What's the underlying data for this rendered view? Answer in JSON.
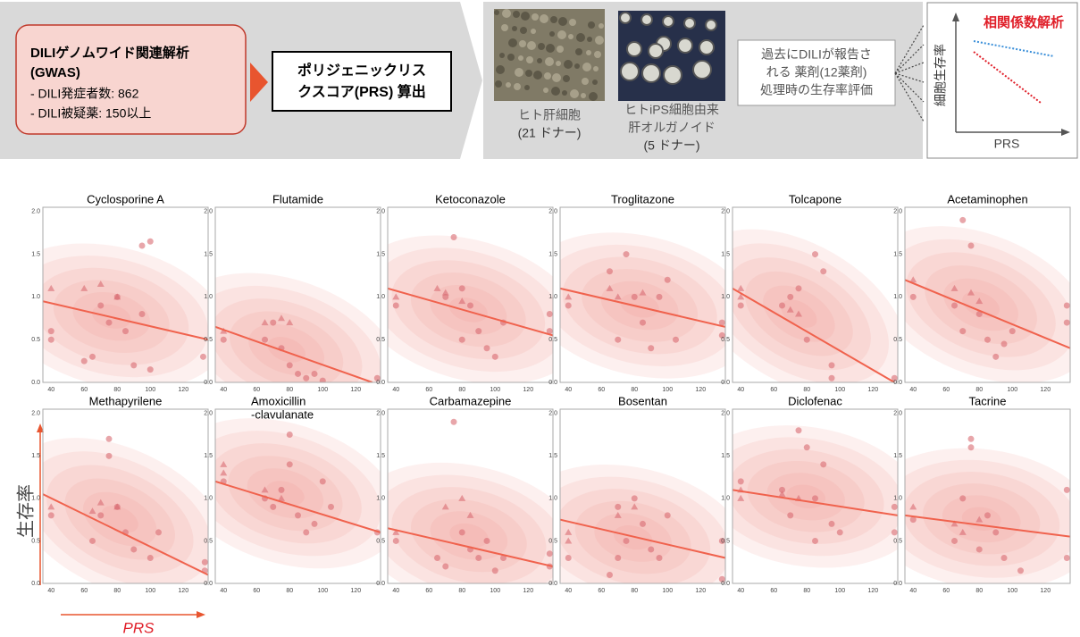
{
  "header": {
    "gwas_box": {
      "title": [
        "DILIゲノムワイド関連解析",
        "(GWAS)"
      ],
      "items": [
        "- DILI発症者数: 862",
        "- DILI被疑薬: 150以上"
      ]
    },
    "prs_box": [
      "ポリジェニックリス",
      "クスコア(PRS) 算出"
    ],
    "hepatocyte_label": [
      "ヒト肝細胞",
      "(21 ドナー)"
    ],
    "organoid_label": [
      "ヒトiPS細胞由来",
      "肝オルガノイド",
      "(5 ドナー)"
    ],
    "drug_box": [
      "過去にDILIが報告さ",
      "れる 薬剤(12薬剤)",
      "処理時の生存率評価"
    ],
    "inset": {
      "title": "相関係数解析",
      "y_label": "細胞生存率",
      "x_label": "PRS"
    }
  },
  "figure": {
    "y_label": "生存率",
    "x_label": "PRS"
  },
  "chart_data": [
    {
      "type": "scatter",
      "title": "Cyclosporine A",
      "xlim": [
        35,
        135
      ],
      "ylim": [
        0,
        2.05
      ],
      "xticks": [
        40,
        60,
        80,
        100,
        120
      ],
      "yticks": [
        {
          "value": 0,
          "label": "0.0"
        },
        {
          "value": 0.5,
          "label": "0.5"
        },
        {
          "value": 1,
          "label": "1.0"
        },
        {
          "value": 1.5,
          "label": "1.5"
        },
        {
          "value": 2,
          "label": "2.0"
        }
      ],
      "trend": {
        "x": [
          35,
          135
        ],
        "y": [
          0.95,
          0.5
        ]
      },
      "series": [
        {
          "marker": "circle",
          "x": [
            40,
            40,
            60,
            65,
            70,
            75,
            80,
            85,
            90,
            95,
            95,
            100,
            100,
            132
          ],
          "values": [
            0.6,
            0.5,
            0.25,
            0.3,
            0.9,
            0.7,
            1.0,
            0.6,
            0.2,
            0.8,
            1.6,
            1.65,
            0.15,
            0.3
          ]
        },
        {
          "marker": "triangle",
          "x": [
            40,
            60,
            70,
            80
          ],
          "values": [
            1.1,
            1.1,
            1.15,
            1.0
          ]
        }
      ]
    },
    {
      "type": "scatter",
      "title": "Flutamide",
      "xlim": [
        35,
        135
      ],
      "ylim": [
        0,
        2.05
      ],
      "xticks": [
        40,
        60,
        80,
        100,
        120
      ],
      "yticks": [
        {
          "value": 0,
          "label": "0.0"
        },
        {
          "value": 0.5,
          "label": "0.5"
        },
        {
          "value": 1,
          "label": "1.0"
        },
        {
          "value": 1.5,
          "label": "1.5"
        },
        {
          "value": 2,
          "label": "2.0"
        }
      ],
      "trend": {
        "x": [
          35,
          130
        ],
        "y": [
          0.65,
          0
        ]
      },
      "series": [
        {
          "marker": "circle",
          "x": [
            40,
            65,
            70,
            75,
            80,
            85,
            90,
            95,
            100,
            133
          ],
          "values": [
            0.5,
            0.5,
            0.7,
            0.4,
            0.2,
            0.1,
            0.05,
            0.1,
            0.02,
            0.05
          ]
        },
        {
          "marker": "triangle",
          "x": [
            40,
            65,
            75,
            80
          ],
          "values": [
            0.6,
            0.7,
            0.75,
            0.7
          ]
        }
      ]
    },
    {
      "type": "scatter",
      "title": "Ketoconazole",
      "xlim": [
        35,
        135
      ],
      "ylim": [
        0,
        2.05
      ],
      "xticks": [
        40,
        60,
        80,
        100,
        120
      ],
      "yticks": [
        {
          "value": 0,
          "label": "0.0"
        },
        {
          "value": 0.5,
          "label": "0.5"
        },
        {
          "value": 1,
          "label": "1.0"
        },
        {
          "value": 1.5,
          "label": "1.5"
        },
        {
          "value": 2,
          "label": "2.0"
        }
      ],
      "trend": {
        "x": [
          35,
          135
        ],
        "y": [
          1.1,
          0.55
        ]
      },
      "series": [
        {
          "marker": "circle",
          "x": [
            40,
            70,
            75,
            80,
            80,
            85,
            90,
            95,
            100,
            105,
            133,
            133
          ],
          "values": [
            0.9,
            1.0,
            1.7,
            1.1,
            0.5,
            0.9,
            0.6,
            0.4,
            0.3,
            0.7,
            0.6,
            0.8
          ]
        },
        {
          "marker": "triangle",
          "x": [
            40,
            65,
            70,
            80
          ],
          "values": [
            1.0,
            1.1,
            1.05,
            0.95
          ]
        }
      ]
    },
    {
      "type": "scatter",
      "title": "Troglitazone",
      "xlim": [
        35,
        135
      ],
      "ylim": [
        0,
        2.05
      ],
      "xticks": [
        40,
        60,
        80,
        100,
        120
      ],
      "yticks": [
        {
          "value": 0,
          "label": "0.0"
        },
        {
          "value": 0.5,
          "label": "0.5"
        },
        {
          "value": 1,
          "label": "1.0"
        },
        {
          "value": 1.5,
          "label": "1.5"
        },
        {
          "value": 2,
          "label": "2.0"
        }
      ],
      "trend": {
        "x": [
          35,
          135
        ],
        "y": [
          1.1,
          0.65
        ]
      },
      "series": [
        {
          "marker": "circle",
          "x": [
            40,
            65,
            70,
            75,
            80,
            85,
            90,
            95,
            100,
            105,
            133,
            133
          ],
          "values": [
            0.9,
            1.3,
            0.5,
            1.5,
            1.0,
            0.7,
            0.4,
            1.0,
            1.2,
            0.5,
            0.7,
            0.55
          ]
        },
        {
          "marker": "triangle",
          "x": [
            40,
            65,
            70,
            85
          ],
          "values": [
            1.0,
            1.1,
            1.0,
            1.05
          ]
        }
      ]
    },
    {
      "type": "scatter",
      "title": "Tolcapone",
      "xlim": [
        35,
        135
      ],
      "ylim": [
        0,
        2.05
      ],
      "xticks": [
        40,
        60,
        80,
        100,
        120
      ],
      "yticks": [
        {
          "value": 0,
          "label": "0.0"
        },
        {
          "value": 0.5,
          "label": "0.5"
        },
        {
          "value": 1,
          "label": "1.0"
        },
        {
          "value": 1.5,
          "label": "1.5"
        },
        {
          "value": 2,
          "label": "2.0"
        }
      ],
      "trend": {
        "x": [
          35,
          133
        ],
        "y": [
          1.1,
          0
        ]
      },
      "series": [
        {
          "marker": "circle",
          "x": [
            40,
            65,
            70,
            75,
            80,
            85,
            90,
            95,
            95,
            133
          ],
          "values": [
            0.9,
            0.9,
            1.0,
            1.1,
            0.5,
            1.5,
            1.3,
            0.2,
            0.05,
            0.05
          ]
        },
        {
          "marker": "triangle",
          "x": [
            40,
            40,
            70,
            75
          ],
          "values": [
            1.1,
            1.0,
            0.85,
            0.8
          ]
        }
      ]
    },
    {
      "type": "scatter",
      "title": "Acetaminophen",
      "xlim": [
        35,
        135
      ],
      "ylim": [
        0,
        2.05
      ],
      "xticks": [
        40,
        60,
        80,
        100,
        120
      ],
      "yticks": [
        {
          "value": 0,
          "label": "0.0"
        },
        {
          "value": 0.5,
          "label": "0.5"
        },
        {
          "value": 1,
          "label": "1.0"
        },
        {
          "value": 1.5,
          "label": "1.5"
        },
        {
          "value": 2,
          "label": "2.0"
        }
      ],
      "trend": {
        "x": [
          35,
          135
        ],
        "y": [
          1.2,
          0.4
        ]
      },
      "series": [
        {
          "marker": "circle",
          "x": [
            40,
            65,
            70,
            70,
            75,
            80,
            85,
            90,
            95,
            100,
            133,
            133
          ],
          "values": [
            1.0,
            0.9,
            0.6,
            1.9,
            1.6,
            0.8,
            0.5,
            0.3,
            0.45,
            0.6,
            0.9,
            0.7
          ]
        },
        {
          "marker": "triangle",
          "x": [
            40,
            65,
            75,
            80
          ],
          "values": [
            1.2,
            1.1,
            1.05,
            0.95
          ]
        }
      ]
    },
    {
      "type": "scatter",
      "title": "Methapyrilene",
      "xlim": [
        35,
        135
      ],
      "ylim": [
        0,
        2.05
      ],
      "xticks": [
        40,
        60,
        80,
        100,
        120
      ],
      "yticks": [
        {
          "value": 0,
          "label": "0.0"
        },
        {
          "value": 0.5,
          "label": "0.5"
        },
        {
          "value": 1,
          "label": "1.0"
        },
        {
          "value": 1.5,
          "label": "1.5"
        },
        {
          "value": 2,
          "label": "2.0"
        }
      ],
      "trend": {
        "x": [
          35,
          135
        ],
        "y": [
          1.05,
          0.1
        ]
      },
      "series": [
        {
          "marker": "circle",
          "x": [
            40,
            65,
            70,
            75,
            75,
            80,
            85,
            90,
            100,
            105,
            133,
            133
          ],
          "values": [
            0.8,
            0.5,
            0.8,
            1.7,
            1.5,
            0.9,
            0.6,
            0.4,
            0.3,
            0.6,
            0.15,
            0.25
          ]
        },
        {
          "marker": "triangle",
          "x": [
            40,
            65,
            70,
            80
          ],
          "values": [
            0.9,
            0.85,
            0.95,
            0.9
          ]
        }
      ]
    },
    {
      "type": "scatter",
      "title": [
        "Amoxicillin",
        "-clavulanate"
      ],
      "xlim": [
        35,
        135
      ],
      "ylim": [
        0,
        2.05
      ],
      "xticks": [
        40,
        60,
        80,
        100,
        120
      ],
      "yticks": [
        {
          "value": 0,
          "label": "0.0"
        },
        {
          "value": 0.5,
          "label": "0.5"
        },
        {
          "value": 1,
          "label": "1.0"
        },
        {
          "value": 1.5,
          "label": "1.5"
        },
        {
          "value": 2,
          "label": "2.0"
        }
      ],
      "trend": {
        "x": [
          35,
          135
        ],
        "y": [
          1.2,
          0.6
        ]
      },
      "series": [
        {
          "marker": "circle",
          "x": [
            40,
            65,
            70,
            75,
            80,
            80,
            85,
            90,
            95,
            100,
            105,
            133
          ],
          "values": [
            1.2,
            1.0,
            0.9,
            1.1,
            1.75,
            1.4,
            0.8,
            0.6,
            0.7,
            1.2,
            0.9,
            0.6
          ]
        },
        {
          "marker": "triangle",
          "x": [
            40,
            40,
            65,
            75
          ],
          "values": [
            1.4,
            1.3,
            1.1,
            1.0
          ]
        }
      ]
    },
    {
      "type": "scatter",
      "title": "Carbamazepine",
      "xlim": [
        35,
        135
      ],
      "ylim": [
        0,
        2.05
      ],
      "xticks": [
        40,
        60,
        80,
        100,
        120
      ],
      "yticks": [
        {
          "value": 0,
          "label": "0.0"
        },
        {
          "value": 0.5,
          "label": "0.5"
        },
        {
          "value": 1,
          "label": "1.0"
        },
        {
          "value": 1.5,
          "label": "1.5"
        },
        {
          "value": 2,
          "label": "2.0"
        }
      ],
      "trend": {
        "x": [
          35,
          135
        ],
        "y": [
          0.65,
          0.2
        ]
      },
      "series": [
        {
          "marker": "circle",
          "x": [
            40,
            65,
            70,
            75,
            80,
            85,
            90,
            95,
            100,
            105,
            133,
            133
          ],
          "values": [
            0.5,
            0.3,
            0.2,
            1.9,
            0.6,
            0.4,
            0.3,
            0.5,
            0.15,
            0.3,
            0.35,
            0.2
          ]
        },
        {
          "marker": "triangle",
          "x": [
            40,
            70,
            80,
            85
          ],
          "values": [
            0.6,
            0.9,
            1.0,
            0.8
          ]
        }
      ]
    },
    {
      "type": "scatter",
      "title": "Bosentan",
      "xlim": [
        35,
        135
      ],
      "ylim": [
        0,
        2.05
      ],
      "xticks": [
        40,
        60,
        80,
        100,
        120
      ],
      "yticks": [
        {
          "value": 0,
          "label": "0.0"
        },
        {
          "value": 0.5,
          "label": "0.5"
        },
        {
          "value": 1,
          "label": "1.0"
        },
        {
          "value": 1.5,
          "label": "1.5"
        },
        {
          "value": 2,
          "label": "2.0"
        }
      ],
      "trend": {
        "x": [
          35,
          135
        ],
        "y": [
          0.75,
          0.3
        ]
      },
      "series": [
        {
          "marker": "circle",
          "x": [
            40,
            65,
            70,
            75,
            80,
            85,
            90,
            95,
            100,
            133,
            133,
            70
          ],
          "values": [
            0.3,
            0.1,
            0.9,
            0.5,
            1.0,
            0.7,
            0.4,
            0.3,
            0.8,
            0.5,
            0.05,
            0.3
          ]
        },
        {
          "marker": "triangle",
          "x": [
            40,
            40,
            70,
            80
          ],
          "values": [
            0.6,
            0.5,
            0.8,
            0.9
          ]
        }
      ]
    },
    {
      "type": "scatter",
      "title": "Diclofenac",
      "xlim": [
        35,
        135
      ],
      "ylim": [
        0,
        2.05
      ],
      "xticks": [
        40,
        60,
        80,
        100,
        120
      ],
      "yticks": [
        {
          "value": 0,
          "label": "0.0"
        },
        {
          "value": 0.5,
          "label": "0.5"
        },
        {
          "value": 1,
          "label": "1.0"
        },
        {
          "value": 1.5,
          "label": "1.5"
        },
        {
          "value": 2,
          "label": "2.0"
        }
      ],
      "trend": {
        "x": [
          35,
          135
        ],
        "y": [
          1.1,
          0.8
        ]
      },
      "series": [
        {
          "marker": "circle",
          "x": [
            40,
            65,
            70,
            75,
            80,
            85,
            90,
            95,
            100,
            133,
            133,
            85
          ],
          "values": [
            1.2,
            1.1,
            0.8,
            1.8,
            1.6,
            1.0,
            1.4,
            0.7,
            0.6,
            0.9,
            0.6,
            0.5
          ]
        },
        {
          "marker": "triangle",
          "x": [
            40,
            40,
            65,
            75
          ],
          "values": [
            1.1,
            1.0,
            1.05,
            1.0
          ]
        }
      ]
    },
    {
      "type": "scatter",
      "title": "Tacrine",
      "xlim": [
        35,
        135
      ],
      "ylim": [
        0,
        2.05
      ],
      "xticks": [
        40,
        60,
        80,
        100,
        120
      ],
      "yticks": [
        {
          "value": 0,
          "label": "0.0"
        },
        {
          "value": 0.5,
          "label": "0.5"
        },
        {
          "value": 1,
          "label": "1.0"
        },
        {
          "value": 1.5,
          "label": "1.5"
        },
        {
          "value": 2,
          "label": "2.0"
        }
      ],
      "trend": {
        "x": [
          35,
          135
        ],
        "y": [
          0.8,
          0.55
        ]
      },
      "series": [
        {
          "marker": "circle",
          "x": [
            40,
            65,
            70,
            75,
            75,
            80,
            85,
            90,
            95,
            105,
            133,
            133
          ],
          "values": [
            0.75,
            0.5,
            1.0,
            1.7,
            1.6,
            0.4,
            0.8,
            0.6,
            0.3,
            0.15,
            1.1,
            0.3
          ]
        },
        {
          "marker": "triangle",
          "x": [
            40,
            65,
            70,
            80
          ],
          "values": [
            0.9,
            0.7,
            0.6,
            0.75
          ]
        }
      ]
    }
  ]
}
